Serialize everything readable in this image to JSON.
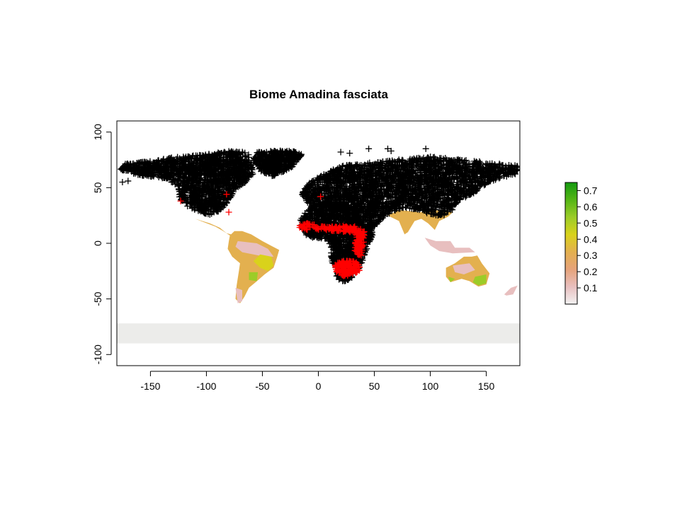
{
  "chart_data": {
    "type": "map",
    "title": "Biome Amadina fasciata",
    "xlabel": "",
    "ylabel": "",
    "xlim": [
      -180,
      180
    ],
    "ylim": [
      -110,
      110
    ],
    "x_ticks": [
      -150,
      -100,
      -50,
      0,
      50,
      100,
      150
    ],
    "y_ticks": [
      -100,
      -50,
      0,
      50,
      100
    ],
    "grid": false,
    "legend": {
      "placement": "right",
      "type": "colorbar",
      "range": [
        0,
        0.75
      ],
      "ticks": [
        0.1,
        0.2,
        0.3,
        0.4,
        0.5,
        0.6,
        0.7
      ],
      "colors": [
        "#f2f2f2",
        "#e8bfbf",
        "#e6a37a",
        "#e3b04f",
        "#d9d21b",
        "#9ccc28",
        "#54b515",
        "#149a10"
      ]
    },
    "colors": {
      "background_point": "#000000",
      "presence_point": "#ff0000",
      "antarctica": "#ececea",
      "no_data": "#f1f1f1"
    },
    "series": [
      {
        "name": "",
        "marker": "+",
        "color": "#000000"
      },
      {
        "name": "",
        "marker": "+",
        "color": "#ff0000"
      }
    ]
  }
}
